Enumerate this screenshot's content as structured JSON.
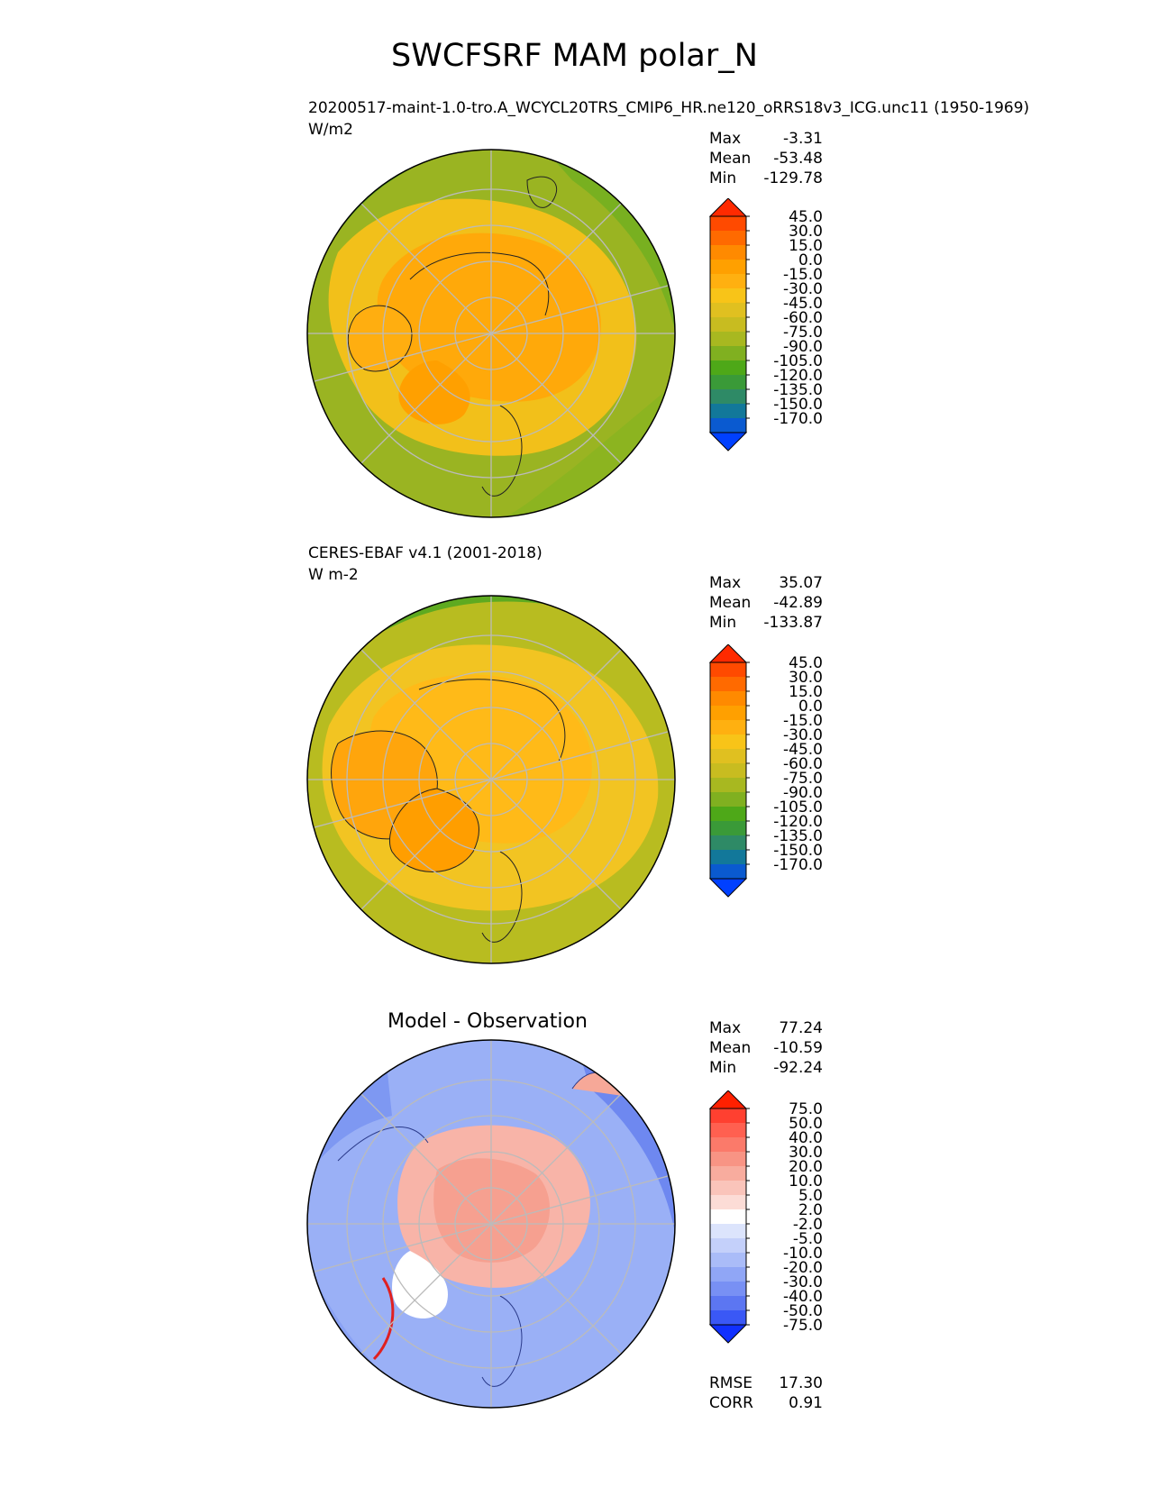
{
  "figure": {
    "title": "SWCFSRF MAM polar_N"
  },
  "panels": [
    {
      "id": "test",
      "title": "20200517-maint-1.0-tro.A_WCYCL20TRS_CMIP6_HR.ne120_oRRS18v3_ICG.unc11 (1950-1969)",
      "units": "W/m2",
      "stats": [
        {
          "label": "Max",
          "value": "-3.31"
        },
        {
          "label": "Mean",
          "value": "-53.48"
        },
        {
          "label": "Min",
          "value": "-129.78"
        }
      ]
    },
    {
      "id": "ref",
      "title": "CERES-EBAF v4.1 (2001-2018)",
      "units": "W m-2",
      "stats": [
        {
          "label": "Max",
          "value": "35.07"
        },
        {
          "label": "Mean",
          "value": "-42.89"
        },
        {
          "label": "Min",
          "value": "-133.87"
        }
      ]
    },
    {
      "id": "diff",
      "title": "Model - Observation",
      "units": "",
      "stats": [
        {
          "label": "Max",
          "value": "77.24"
        },
        {
          "label": "Mean",
          "value": "-10.59"
        },
        {
          "label": "Min",
          "value": "-92.24"
        }
      ],
      "metrics": [
        {
          "label": "RMSE",
          "value": "17.30"
        },
        {
          "label": "CORR",
          "value": "0.91"
        }
      ]
    }
  ],
  "chart_data": [
    {
      "type": "heatmap",
      "projection": "north polar stereographic",
      "title": "20200517-maint-1.0-tro.A_WCYCL20TRS_CMIP6_HR.ne120_oRRS18v3_ICG.unc11 (1950-1969)",
      "units": "W/m2",
      "colorbar": {
        "levels": [
          "45.0",
          "30.0",
          "15.0",
          "0.0",
          "-15.0",
          "-30.0",
          "-45.0",
          "-60.0",
          "-75.0",
          "-90.0",
          "-105.0",
          "-120.0",
          "-135.0",
          "-150.0",
          "-170.0"
        ],
        "colors": [
          "#ff2a00",
          "#ff4a00",
          "#ff6a00",
          "#ff8a00",
          "#ffa000",
          "#ffb010",
          "#f8c418",
          "#e0c020",
          "#c8bc20",
          "#a8b820",
          "#80b020",
          "#4ea818",
          "#3a9a38",
          "#2e8a66",
          "#12789a",
          "#0a5ad0",
          "#0040ff"
        ]
      },
      "stats": {
        "max": -3.31,
        "mean": -53.48,
        "min": -129.78
      }
    },
    {
      "type": "heatmap",
      "projection": "north polar stereographic",
      "title": "CERES-EBAF v4.1 (2001-2018)",
      "units": "W m-2",
      "colorbar": {
        "levels": [
          "45.0",
          "30.0",
          "15.0",
          "0.0",
          "-15.0",
          "-30.0",
          "-45.0",
          "-60.0",
          "-75.0",
          "-90.0",
          "-105.0",
          "-120.0",
          "-135.0",
          "-150.0",
          "-170.0"
        ],
        "colors": [
          "#ff2a00",
          "#ff4a00",
          "#ff6a00",
          "#ff8a00",
          "#ffa000",
          "#ffb010",
          "#f8c418",
          "#e0c020",
          "#c8bc20",
          "#a8b820",
          "#80b020",
          "#4ea818",
          "#3a9a38",
          "#2e8a66",
          "#12789a",
          "#0a5ad0",
          "#0040ff"
        ]
      },
      "stats": {
        "max": 35.07,
        "mean": -42.89,
        "min": -133.87
      }
    },
    {
      "type": "heatmap",
      "projection": "north polar stereographic",
      "title": "Model - Observation",
      "colorbar": {
        "levels": [
          "75.0",
          "50.0",
          "40.0",
          "30.0",
          "20.0",
          "10.0",
          "5.0",
          "2.0",
          "-2.0",
          "-5.0",
          "-10.0",
          "-20.0",
          "-30.0",
          "-40.0",
          "-50.0",
          "-75.0"
        ],
        "colors": [
          "#ff2000",
          "#ff4030",
          "#ff6050",
          "#fb7a6a",
          "#f89484",
          "#f8ac9e",
          "#fac4ba",
          "#fcdcd6",
          "#ffffff",
          "#dce4fc",
          "#c4d0fa",
          "#aabcf8",
          "#90a6f6",
          "#7890f4",
          "#5c76f2",
          "#3a58f6",
          "#1030ff"
        ]
      },
      "stats": {
        "max": 77.24,
        "mean": -10.59,
        "min": -92.24
      },
      "rmse": 17.3,
      "corr": 0.91
    }
  ]
}
